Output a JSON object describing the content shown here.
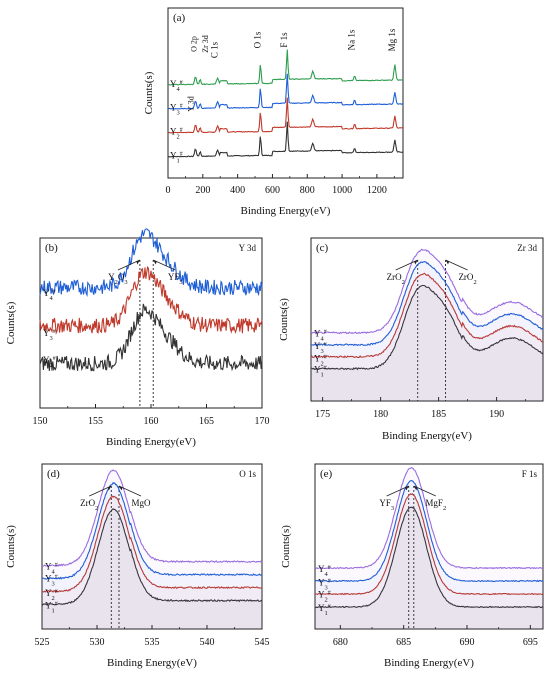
{
  "chart_data": [
    {
      "id": "a",
      "type": "line",
      "panel_label": "(a)",
      "xlabel": "Binding Energy(eV)",
      "ylabel": "Counts(s)",
      "xlim": [
        0,
        1350
      ],
      "xticks": [
        0,
        200,
        400,
        600,
        800,
        1000,
        1200
      ],
      "series": [
        {
          "name": "Y1#",
          "color": "#333333"
        },
        {
          "name": "Y2#",
          "color": "#c0392b"
        },
        {
          "name": "Y3#",
          "color": "#1f5fd6"
        },
        {
          "name": "Y4#",
          "color": "#2e9e4f"
        }
      ],
      "peak_labels": [
        {
          "text": "O 2p",
          "x": 175
        },
        {
          "text": "Zr 3d",
          "x": 185
        },
        {
          "text": "Y 3d",
          "x": 158
        },
        {
          "text": "C 1s",
          "x": 285
        },
        {
          "text": "O 1s",
          "x": 531
        },
        {
          "text": "F 1s",
          "x": 685
        },
        {
          "text": "Na 1s",
          "x": 1072
        },
        {
          "text": "Mg 1s",
          "x": 1303
        }
      ]
    },
    {
      "id": "b",
      "type": "line",
      "panel_label": "(b)",
      "element": "Y 3d",
      "xlabel": "Binding Energy(eV)",
      "ylabel": "Counts(s)",
      "xlim": [
        150,
        170
      ],
      "xticks": [
        150,
        155,
        160,
        165,
        170
      ],
      "reference_lines": [
        159.0,
        160.2
      ],
      "annotations": [
        {
          "text": "Y2O3",
          "x": 159.0
        },
        {
          "text": "YF3",
          "x": 160.2
        }
      ],
      "series": [
        {
          "name": "Y2#",
          "color": "#333333"
        },
        {
          "name": "Y3#",
          "color": "#c0392b"
        },
        {
          "name": "Y4#",
          "color": "#1f5fd6"
        }
      ]
    },
    {
      "id": "c",
      "type": "line",
      "panel_label": "(c)",
      "element": "Zr 3d",
      "xlabel": "Binding Energy(eV)",
      "ylabel": "Counts(s)",
      "xlim": [
        174,
        194
      ],
      "xticks": [
        175,
        180,
        185,
        190
      ],
      "reference_lines": [
        183.2,
        185.6
      ],
      "annotations": [
        {
          "text": "ZrO2",
          "x": 183.2
        },
        {
          "text": "ZrO2",
          "x": 185.6
        }
      ],
      "series": [
        {
          "name": "Y1#",
          "color": "#333333"
        },
        {
          "name": "Y2#",
          "color": "#c0392b"
        },
        {
          "name": "Y3#",
          "color": "#1f5fd6"
        },
        {
          "name": "Y4#",
          "color": "#9b6ee0"
        }
      ]
    },
    {
      "id": "d",
      "type": "line",
      "panel_label": "(d)",
      "element": "O 1s",
      "xlabel": "Binding Energy(eV)",
      "ylabel": "Counts(s)",
      "xlim": [
        525,
        545
      ],
      "xticks": [
        525,
        530,
        535,
        540,
        545
      ],
      "reference_lines": [
        531.3,
        532.0
      ],
      "annotations": [
        {
          "text": "ZrO2",
          "x": 531.3
        },
        {
          "text": "MgO",
          "x": 532.0
        }
      ],
      "series": [
        {
          "name": "Y1#",
          "color": "#333333"
        },
        {
          "name": "Y2#",
          "color": "#c0392b"
        },
        {
          "name": "Y3#",
          "color": "#1f5fd6"
        },
        {
          "name": "Y4#",
          "color": "#9b6ee0"
        }
      ]
    },
    {
      "id": "e",
      "type": "line",
      "panel_label": "(e)",
      "element": "F 1s",
      "xlabel": "Binding Energy(eV)",
      "ylabel": "Counts(s)",
      "xlim": [
        678,
        696
      ],
      "xticks": [
        680,
        685,
        690,
        695
      ],
      "reference_lines": [
        685.4,
        685.8
      ],
      "annotations": [
        {
          "text": "YF3",
          "x": 685.4
        },
        {
          "text": "MgF2",
          "x": 685.8
        }
      ],
      "series": [
        {
          "name": "Y1#",
          "color": "#333333"
        },
        {
          "name": "Y2#",
          "color": "#c0392b"
        },
        {
          "name": "Y3#",
          "color": "#1f5fd6"
        },
        {
          "name": "Y4#",
          "color": "#9b6ee0"
        }
      ]
    }
  ]
}
